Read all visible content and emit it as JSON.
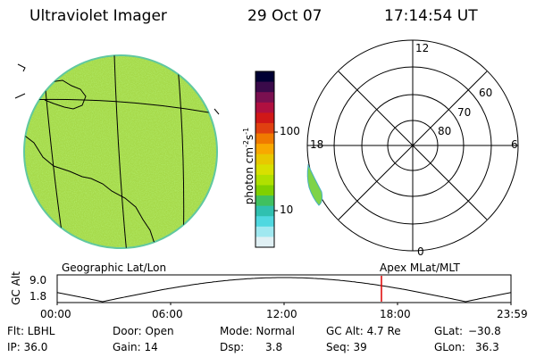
{
  "header": {
    "instrument": "Ultraviolet Imager",
    "date": "29 Oct 07",
    "time": "17:14:54 UT"
  },
  "colorbar": {
    "unit_label": "photon cm",
    "unit_sup1": "-2",
    "unit_mid": "s",
    "unit_sup2": "-1",
    "tick_100": "100",
    "tick_10": "10",
    "colors": [
      "#000033",
      "#3a0a4a",
      "#7a1050",
      "#b01040",
      "#d01818",
      "#e04010",
      "#f07a00",
      "#f8a800",
      "#e8c800",
      "#d8e000",
      "#b0e000",
      "#80d000",
      "#40c060",
      "#30c0b0",
      "#50d8e0",
      "#a0e8f0",
      "#e0f0f4"
    ]
  },
  "left_map": {
    "caption": "Geographic Lat/Lon",
    "fill_color": "#a6d94a"
  },
  "right_map": {
    "caption": "Apex MLat/MLT",
    "mlt_labels": {
      "top": "12",
      "left": "18",
      "right": "6",
      "bottom": "0"
    },
    "lat_labels": [
      "60",
      "70",
      "80"
    ]
  },
  "orbit_plot": {
    "ylabel": "GC Alt",
    "y_ticks": [
      "9.0",
      "1.8"
    ],
    "x_ticks": [
      "00:00",
      "06:00",
      "12:00",
      "18:00",
      "23:59"
    ],
    "current_time_color": "#dd0000"
  },
  "info": {
    "flt_label": "Flt: LBHL",
    "ip_label": "IP: 36.0",
    "door_label": "Door: Open",
    "gain_label": "Gain: 14",
    "mode_label": "Mode: Normal",
    "dsp_label": "Dsp:",
    "dsp_value": "3.8",
    "gcalt_label": "GC Alt: 4.7 Re",
    "seq_label": "Seq: 39",
    "glat_label": "GLat:",
    "glat_value": "−30.8",
    "glon_label": "GLon:",
    "glon_value": "36.3"
  }
}
